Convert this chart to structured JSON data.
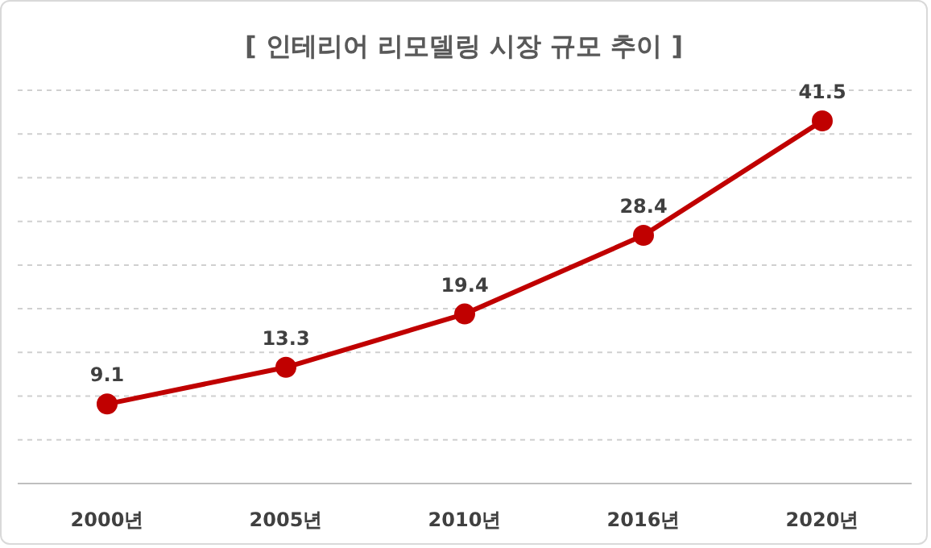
{
  "chart_data": {
    "type": "line",
    "title": "[ 인테리어 리모델링 시장 규모 추이 ]",
    "categories": [
      "2000년",
      "2005년",
      "2010년",
      "2016년",
      "2020년"
    ],
    "series": [
      {
        "color": "#c00000",
        "values": [
          9.1,
          13.3,
          19.4,
          28.4,
          41.5
        ]
      }
    ],
    "ylim": [
      0,
      45
    ],
    "tick_labels": "x",
    "grid": "y",
    "marker": "circle",
    "line_style": "solid",
    "data_labels": true
  }
}
